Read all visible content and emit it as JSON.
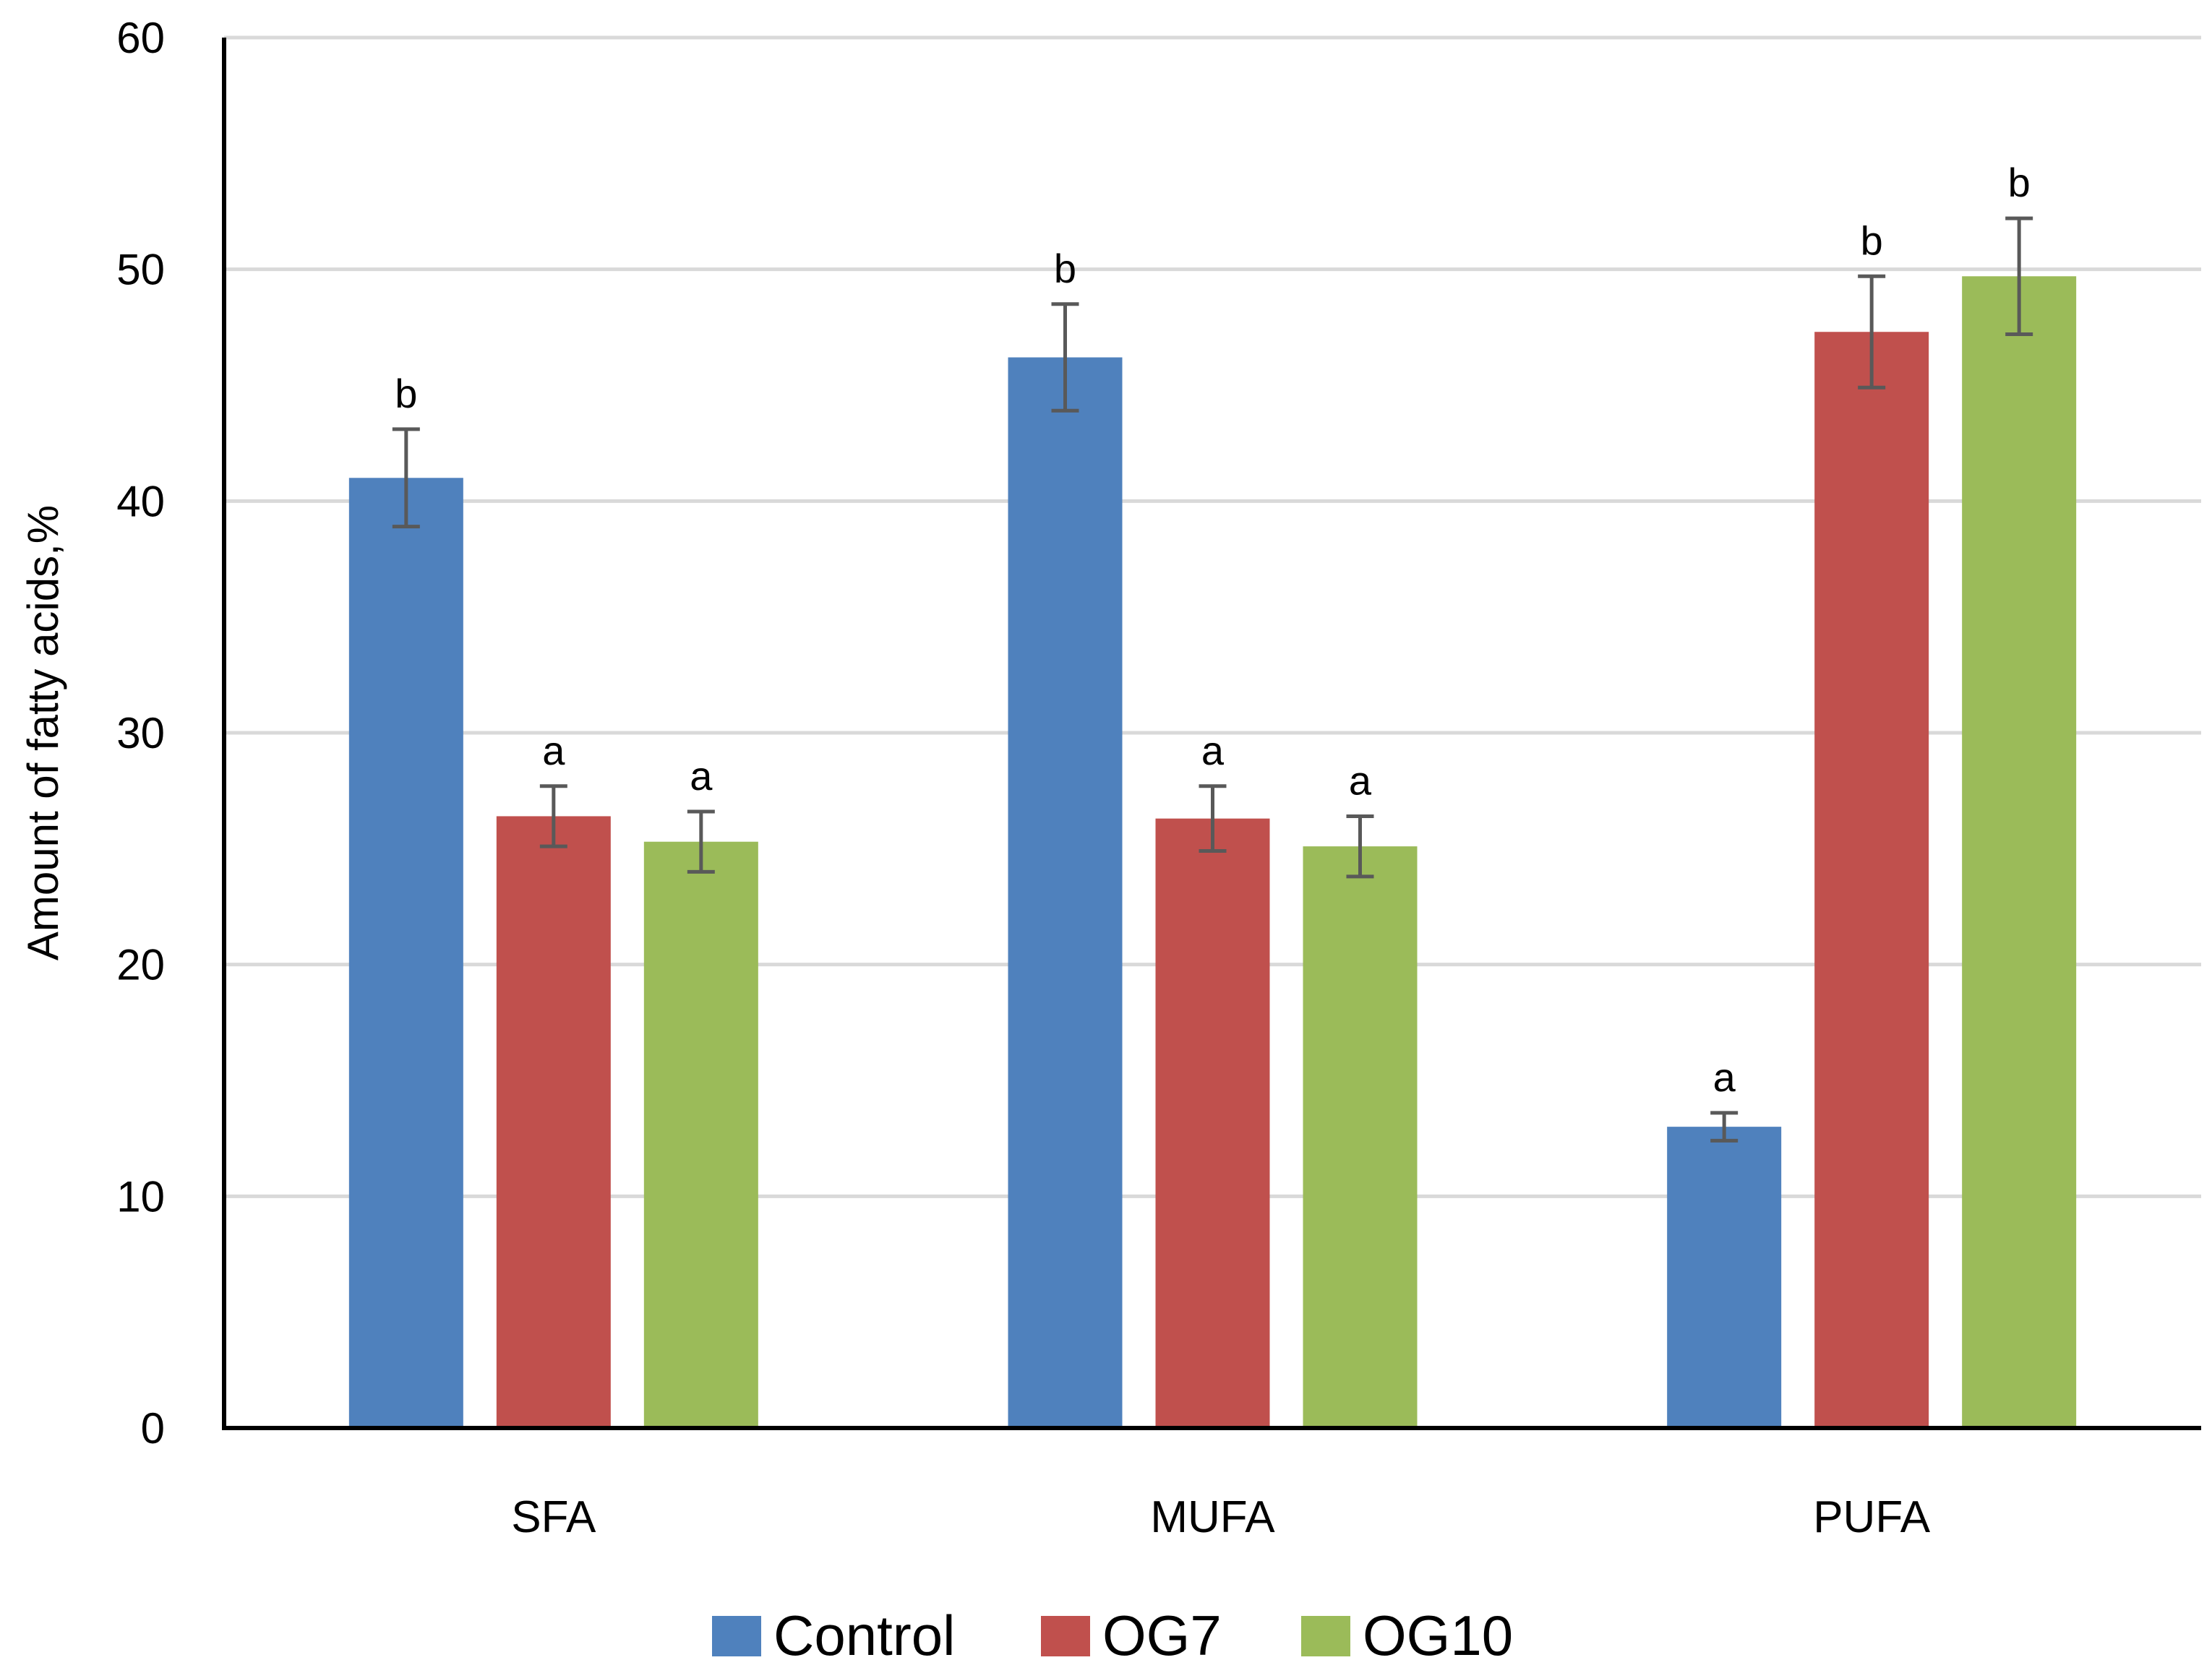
{
  "chart_data": {
    "type": "bar",
    "title": "",
    "xlabel": "",
    "ylabel": "Amount of fatty acids,%",
    "ylim": [
      0,
      60
    ],
    "yticks": [
      0,
      10,
      20,
      30,
      40,
      50,
      60
    ],
    "grid": true,
    "legend_position": "bottom",
    "categories": [
      "SFA",
      "MUFA",
      "PUFA"
    ],
    "series": [
      {
        "name": "Control",
        "color": "#4F81BD",
        "values": [
          41.0,
          46.2,
          13.0
        ],
        "errors": [
          2.1,
          2.3,
          0.6
        ],
        "labels": [
          "b",
          "b",
          "a"
        ]
      },
      {
        "name": "OG7",
        "color": "#C0504D",
        "values": [
          26.4,
          26.3,
          47.3
        ],
        "errors": [
          1.3,
          1.4,
          2.4
        ],
        "labels": [
          "a",
          "a",
          "b"
        ]
      },
      {
        "name": "OG10",
        "color": "#9BBB59",
        "values": [
          25.3,
          25.1,
          49.7
        ],
        "errors": [
          1.3,
          1.3,
          2.5
        ],
        "labels": [
          "a",
          "a",
          "b"
        ]
      }
    ]
  }
}
